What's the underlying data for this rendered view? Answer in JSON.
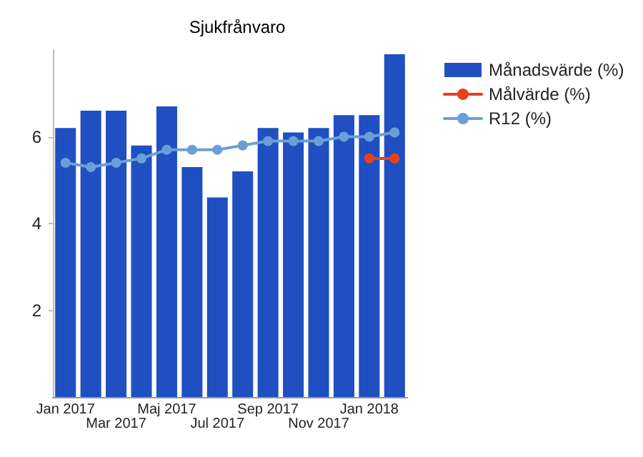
{
  "chart_data": {
    "type": "bar",
    "title": "Sjukfrånvaro",
    "categories": [
      "Jan 2017",
      null,
      "Mar 2017",
      null,
      "Maj 2017",
      null,
      "Jul 2017",
      null,
      "Sep 2017",
      null,
      "Nov 2017",
      null,
      "Jan 2018",
      null
    ],
    "series": [
      {
        "name": "Månadsvärde (%)",
        "color": "#1f4fc1",
        "values": [
          6.2,
          6.6,
          6.6,
          5.8,
          6.7,
          5.3,
          4.6,
          5.2,
          6.2,
          6.1,
          6.2,
          6.5,
          6.5,
          7.9
        ]
      },
      {
        "name": "Målvärde (%)",
        "type": "line",
        "color": "#e8401c",
        "marker": "circle",
        "values": [
          null,
          null,
          null,
          null,
          null,
          null,
          null,
          null,
          null,
          null,
          null,
          null,
          5.5,
          5.5
        ]
      },
      {
        "name": "R12 (%)",
        "type": "line",
        "color": "#6a9fd8",
        "marker": "circle",
        "values": [
          5.4,
          5.3,
          5.4,
          5.5,
          5.7,
          5.7,
          5.7,
          5.8,
          5.9,
          5.9,
          5.9,
          6.0,
          6.0,
          6.1
        ]
      }
    ],
    "ylim": [
      0,
      8
    ],
    "yticks": [
      2,
      4,
      6
    ],
    "grid": false,
    "legend": "right"
  }
}
